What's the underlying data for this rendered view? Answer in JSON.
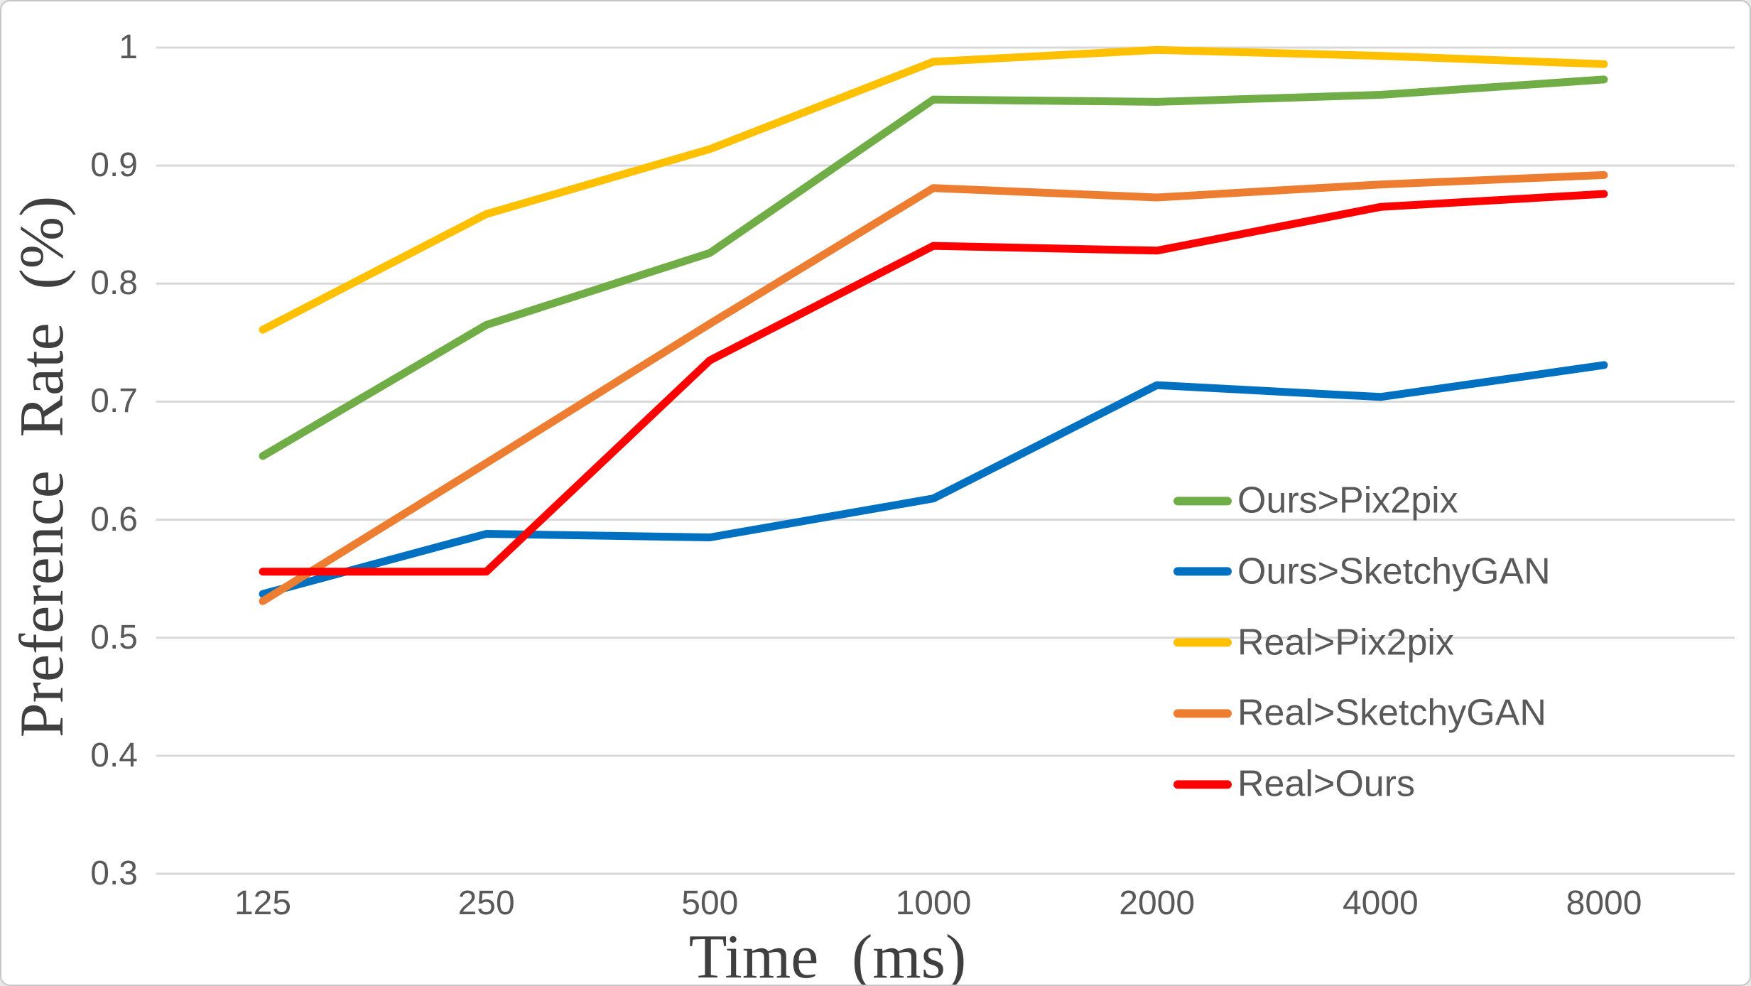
{
  "chart_data": {
    "type": "line",
    "title": "",
    "xlabel": "Time (ms)",
    "ylabel": "Preference Rate (%)",
    "categories": [
      "125",
      "250",
      "500",
      "1000",
      "2000",
      "4000",
      "8000"
    ],
    "x_axis_scale": "categorical (powers of 2, ms)",
    "ylim": [
      0.3,
      1.0
    ],
    "yticks": [
      0.3,
      0.4,
      0.5,
      0.6,
      0.7,
      0.8,
      0.9,
      1.0
    ],
    "ytick_labels": [
      "0.3",
      "0.4",
      "0.5",
      "0.6",
      "0.7",
      "0.8",
      "0.9",
      "1"
    ],
    "grid": "horizontal",
    "grid_color": "#D9D9D9",
    "legend_position": "inside-right",
    "series": [
      {
        "name": "Ours>Pix2pix",
        "color": "#70AD47",
        "values": [
          0.654,
          0.765,
          0.826,
          0.956,
          0.954,
          0.96,
          0.973
        ]
      },
      {
        "name": "Ours>SketchyGAN",
        "color": "#0070C0",
        "values": [
          0.537,
          0.588,
          0.585,
          0.618,
          0.714,
          0.704,
          0.731
        ]
      },
      {
        "name": "Real>Pix2pix",
        "color": "#FFC000",
        "values": [
          0.761,
          0.859,
          0.914,
          0.988,
          0.998,
          0.993,
          0.986
        ]
      },
      {
        "name": "Real>SketchyGAN",
        "color": "#ED7D31",
        "values": [
          0.531,
          0.648,
          0.766,
          0.881,
          0.873,
          0.884,
          0.892
        ]
      },
      {
        "name": "Real>Ours",
        "color": "#FF0000",
        "values": [
          0.556,
          0.556,
          0.735,
          0.832,
          0.828,
          0.865,
          0.876
        ]
      }
    ]
  }
}
